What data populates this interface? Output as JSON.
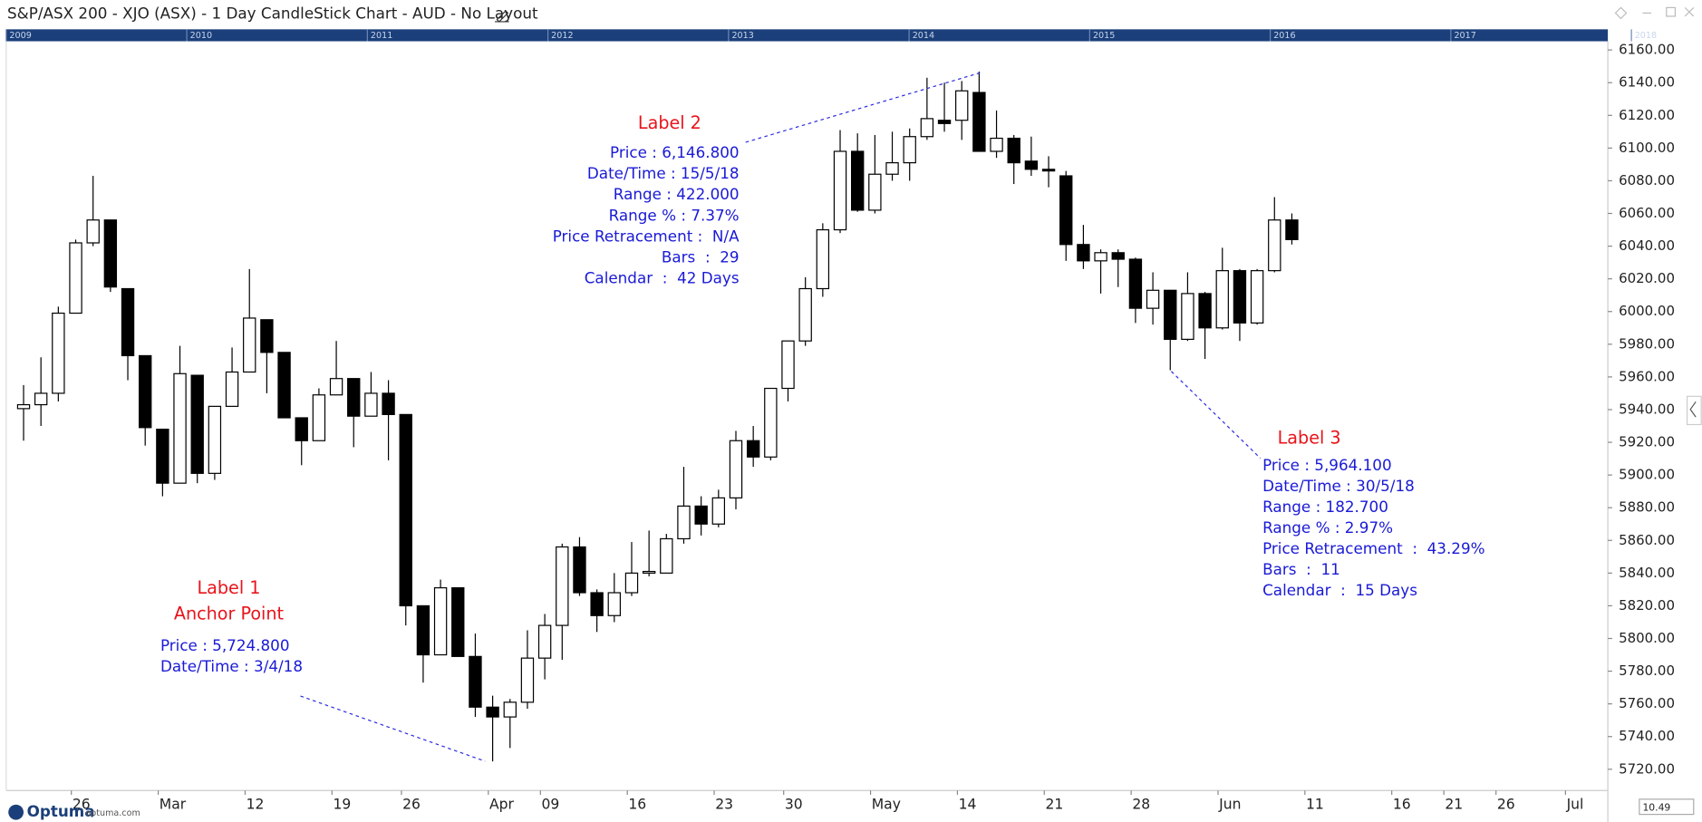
{
  "window_title": "S&P/ASX 200 - XJO (ASX) - 1 Day CandleStick Chart - AUD - No Layout",
  "overview_years": [
    "2009",
    "2010",
    "2011",
    "2012",
    "2013",
    "2014",
    "2015",
    "2016",
    "2017",
    "2018"
  ],
  "footer": {
    "brand": "Optuma",
    "site": "optuma.com",
    "zoom": "10.49"
  },
  "chart_data": {
    "type": "candlestick",
    "categories": [
      null,
      null,
      null,
      "26",
      null,
      null,
      null,
      null,
      "Mar",
      null,
      null,
      null,
      null,
      "12",
      null,
      null,
      null,
      null,
      "19",
      null,
      null,
      null,
      "26",
      null,
      null,
      null,
      null,
      "Apr",
      null,
      null,
      "09",
      null,
      null,
      null,
      null,
      "16",
      null,
      null,
      null,
      null,
      "23",
      null,
      null,
      null,
      "30",
      null,
      null,
      null,
      null,
      "May",
      null,
      null,
      null,
      null,
      "14",
      null,
      null,
      null,
      null,
      "21",
      null,
      null,
      null,
      null,
      "28",
      null,
      null,
      null,
      null,
      "Jun",
      null,
      null,
      null,
      null,
      "11",
      null,
      null,
      null,
      null,
      "16",
      null,
      null,
      "21",
      null,
      null,
      "26",
      null,
      null,
      null,
      "Jul",
      null,
      null
    ],
    "open": [
      5940.6,
      5943,
      5950,
      5999,
      6042,
      6056,
      6014,
      5973,
      5928,
      5895,
      5961,
      5901,
      5942,
      5963,
      5995,
      5975,
      5935,
      5921,
      5949,
      5959,
      5936,
      5950,
      5937,
      5820,
      5790,
      5831,
      5789,
      5758,
      5752,
      5761,
      5788,
      5808,
      5856,
      5828,
      5814,
      5828,
      5840,
      5840,
      5861,
      5881,
      5870,
      5886,
      5921,
      5911,
      5953,
      5982,
      6014,
      6050,
      6098,
      6062,
      6084,
      6091,
      6107,
      6117,
      6117,
      6134,
      6098,
      6106,
      6092,
      6087,
      6083,
      6041,
      6031,
      6036,
      6032,
      6002,
      6013,
      5983,
      6011,
      5990,
      6025,
      5993,
      6025,
      6056,
      null,
      null,
      null,
      null,
      null,
      null,
      null,
      null,
      null,
      null,
      null,
      null,
      null,
      null,
      null,
      null,
      null,
      null
    ],
    "high": [
      5955,
      5972,
      6003,
      6044,
      6083,
      6056,
      6014,
      5973,
      5928,
      5979,
      5961,
      5942,
      5978,
      6026,
      5995,
      5975,
      5935,
      5953,
      5982,
      5959,
      5963,
      5958,
      5937,
      5820,
      5836,
      5831,
      5803,
      5765,
      5763,
      5805,
      5815,
      5858,
      5862,
      5830,
      5840,
      5859,
      5866,
      5864,
      5905,
      5887,
      5891,
      5927,
      5930,
      5953,
      5982,
      6021,
      6054,
      6111,
      6109,
      6108,
      6110,
      6112,
      6143,
      6140,
      6141,
      6146.8,
      6123,
      6108,
      6107,
      6095,
      6086,
      6053,
      6038,
      6038,
      6033,
      6024,
      6013,
      6024,
      6012,
      6039,
      6026,
      6026,
      6070,
      6060,
      null,
      null,
      null,
      null,
      null,
      null,
      null,
      null,
      null,
      null,
      null,
      null,
      null,
      null,
      null,
      null,
      null,
      null
    ],
    "low": [
      5921,
      5930,
      5945,
      5999,
      6040,
      6012,
      5958,
      5918,
      5887,
      5895,
      5895,
      5897,
      5942,
      5963,
      5950,
      5935,
      5906,
      5921,
      5949,
      5917,
      5936,
      5909,
      5808,
      5773,
      5790,
      5789,
      5752,
      5724.8,
      5733,
      5757,
      5775,
      5787,
      5826,
      5804,
      5810,
      5826,
      5838,
      5840,
      5858,
      5863,
      5868,
      5879,
      5905,
      5909,
      5945,
      5979,
      6009,
      6048,
      6061,
      6060,
      6080,
      6080,
      6105,
      6110,
      6105,
      6098,
      6094,
      6078,
      6083,
      6076,
      6031,
      6026,
      6011,
      6015,
      5993,
      5992,
      5964.1,
      5982,
      5971,
      5989,
      5982,
      5992,
      6024,
      6041,
      null,
      null,
      null,
      null,
      null,
      null,
      null,
      null,
      null,
      null,
      null,
      null,
      null,
      null,
      null,
      null,
      null,
      null
    ],
    "close": [
      5943,
      5950,
      5999,
      6042,
      6056,
      6015,
      5973,
      5929,
      5895,
      5962,
      5901,
      5942,
      5963,
      5996,
      5975,
      5935,
      5921,
      5949,
      5959,
      5936,
      5950,
      5937,
      5820,
      5790,
      5831,
      5789,
      5758,
      5752,
      5761,
      5788,
      5808,
      5856,
      5828,
      5814,
      5828,
      5840,
      5841,
      5861,
      5881,
      5870,
      5886,
      5921,
      5911,
      5953,
      5982,
      6014,
      6050,
      6098,
      6062,
      6084,
      6091,
      6107,
      6118,
      6115,
      6135,
      6098,
      6106,
      6091,
      6087,
      6086,
      6041,
      6031,
      6036,
      6032,
      6002,
      6013,
      5983,
      6011,
      5990,
      6025,
      5993,
      6025,
      6056,
      6044,
      null,
      null,
      null,
      null,
      null,
      null,
      null,
      null,
      null,
      null,
      null,
      null,
      null,
      null,
      null,
      null,
      null,
      null
    ],
    "up_color": "#ffffff",
    "down_color": "#000000",
    "outline_color": "#000000",
    "ylim": [
      5707,
      6164
    ],
    "yticks": [
      {
        "value": 5720,
        "label": "5720.00"
      },
      {
        "value": 5740,
        "label": "5740.00"
      },
      {
        "value": 5760,
        "label": "5760.00"
      },
      {
        "value": 5780,
        "label": "5780.00"
      },
      {
        "value": 5800,
        "label": "5800.00"
      },
      {
        "value": 5820,
        "label": "5820.00"
      },
      {
        "value": 5840,
        "label": "5840.00"
      },
      {
        "value": 5860,
        "label": "5860.00"
      },
      {
        "value": 5880,
        "label": "5880.00"
      },
      {
        "value": 5900,
        "label": "5900.00"
      },
      {
        "value": 5920,
        "label": "5920.00"
      },
      {
        "value": 5940,
        "label": "5940.00"
      },
      {
        "value": 5960,
        "label": "5960.00"
      },
      {
        "value": 5980,
        "label": "5980.00"
      },
      {
        "value": 6000,
        "label": "6000.00"
      },
      {
        "value": 6020,
        "label": "6020.00"
      },
      {
        "value": 6040,
        "label": "6040.00"
      },
      {
        "value": 6060,
        "label": "6060.00"
      },
      {
        "value": 6080,
        "label": "6080.00"
      },
      {
        "value": 6100,
        "label": "6100.00"
      },
      {
        "value": 6120,
        "label": "6120.00"
      },
      {
        "value": 6140,
        "label": "6140.00"
      },
      {
        "value": 6160,
        "label": "6160.00"
      }
    ],
    "annotations": [
      {
        "title": "Label 1",
        "subtitle": "Anchor Point",
        "lines": [
          "Price : 5,724.800",
          "Date/Time : 3/4/18"
        ]
      },
      {
        "title": "Label 2",
        "lines": [
          "Price : 6,146.800",
          "Date/Time : 15/5/18",
          "Range : 422.000",
          "Range % : 7.37%",
          "Price Retracement :  N/A",
          "Bars  :  29",
          "Calendar  :  42 Days"
        ]
      },
      {
        "title": "Label 3",
        "lines": [
          "Price : 5,964.100",
          "Date/Time : 30/5/18",
          "Range : 182.700",
          "Range % : 2.97%",
          "Price Retracement  :  43.29%",
          "Bars  :  11",
          "Calendar  :  15 Days"
        ]
      }
    ]
  }
}
